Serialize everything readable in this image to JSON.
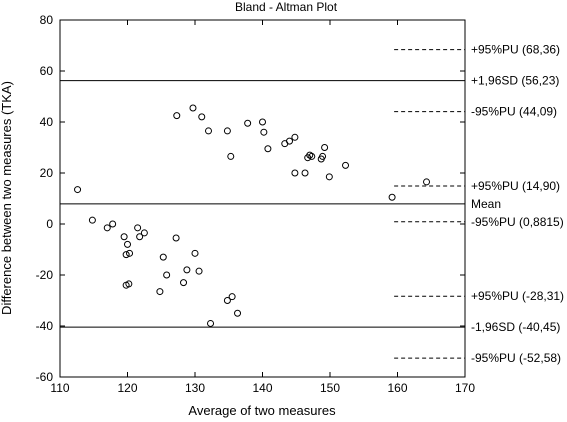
{
  "chart_data": {
    "type": "scatter",
    "title": "Bland - Altman Plot",
    "xlabel": "Average of two measures",
    "ylabel": "Difference between two measures (TKA)",
    "xlim": [
      110,
      170
    ],
    "ylim": [
      -60,
      80
    ],
    "xticks": [
      110,
      120,
      130,
      140,
      150,
      160,
      170
    ],
    "yticks": [
      80,
      60,
      40,
      20,
      0,
      -20,
      -40,
      -60
    ],
    "grid": false,
    "points": [
      {
        "x": 112.6,
        "y": 13.5
      },
      {
        "x": 114.8,
        "y": 1.5
      },
      {
        "x": 117.0,
        "y": -1.5
      },
      {
        "x": 117.8,
        "y": 0.0
      },
      {
        "x": 119.5,
        "y": -5.0
      },
      {
        "x": 119.8,
        "y": -12.0
      },
      {
        "x": 120.0,
        "y": -8.0
      },
      {
        "x": 120.3,
        "y": -11.5
      },
      {
        "x": 119.8,
        "y": -24.0
      },
      {
        "x": 120.2,
        "y": -23.5
      },
      {
        "x": 121.5,
        "y": -1.5
      },
      {
        "x": 121.8,
        "y": -5.0
      },
      {
        "x": 122.5,
        "y": -3.5
      },
      {
        "x": 124.8,
        "y": -26.5
      },
      {
        "x": 125.3,
        "y": -13.0
      },
      {
        "x": 125.8,
        "y": -20.0
      },
      {
        "x": 127.2,
        "y": -5.5
      },
      {
        "x": 128.3,
        "y": -23.0
      },
      {
        "x": 128.8,
        "y": -18.0
      },
      {
        "x": 130.0,
        "y": -11.5
      },
      {
        "x": 130.6,
        "y": -18.5
      },
      {
        "x": 132.3,
        "y": -39.0
      },
      {
        "x": 134.8,
        "y": -30.0
      },
      {
        "x": 135.5,
        "y": -28.5
      },
      {
        "x": 136.3,
        "y": -35.0
      },
      {
        "x": 127.3,
        "y": 42.5
      },
      {
        "x": 129.7,
        "y": 45.5
      },
      {
        "x": 131.0,
        "y": 42.0
      },
      {
        "x": 132.0,
        "y": 36.5
      },
      {
        "x": 134.8,
        "y": 36.5
      },
      {
        "x": 135.3,
        "y": 26.5
      },
      {
        "x": 137.8,
        "y": 39.5
      },
      {
        "x": 140.0,
        "y": 40.0
      },
      {
        "x": 140.2,
        "y": 36.0
      },
      {
        "x": 140.8,
        "y": 29.5
      },
      {
        "x": 143.3,
        "y": 31.5
      },
      {
        "x": 144.0,
        "y": 32.5
      },
      {
        "x": 144.8,
        "y": 34.0
      },
      {
        "x": 144.8,
        "y": 20.0
      },
      {
        "x": 146.3,
        "y": 20.0
      },
      {
        "x": 146.7,
        "y": 26.0
      },
      {
        "x": 147.0,
        "y": 27.0
      },
      {
        "x": 147.3,
        "y": 26.5
      },
      {
        "x": 148.7,
        "y": 25.5
      },
      {
        "x": 148.9,
        "y": 26.5
      },
      {
        "x": 149.2,
        "y": 30.0
      },
      {
        "x": 149.9,
        "y": 18.5
      },
      {
        "x": 152.3,
        "y": 23.0
      },
      {
        "x": 159.2,
        "y": 10.5
      },
      {
        "x": 164.3,
        "y": 16.5
      }
    ],
    "solid_lines": [
      {
        "y": 56.23,
        "label": "+1,96SD (56,23)"
      },
      {
        "y": 7.89,
        "label": "Mean"
      },
      {
        "y": -40.45,
        "label": "-1,96SD (-40,45)"
      }
    ],
    "dashed_lines": [
      {
        "y": 68.36,
        "label": "+95%PU (68,36)"
      },
      {
        "y": 44.09,
        "label": "-95%PU (44,09)"
      },
      {
        "y": 14.9,
        "label": "+95%PU (14,90)"
      },
      {
        "y": 0.8815,
        "label": "-95%PU (0,8815)"
      },
      {
        "y": -28.31,
        "label": "+95%PU (-28,31)"
      },
      {
        "y": -52.58,
        "label": "-95%PU (-52,58)"
      }
    ],
    "dashed_x_start": 159.5
  }
}
